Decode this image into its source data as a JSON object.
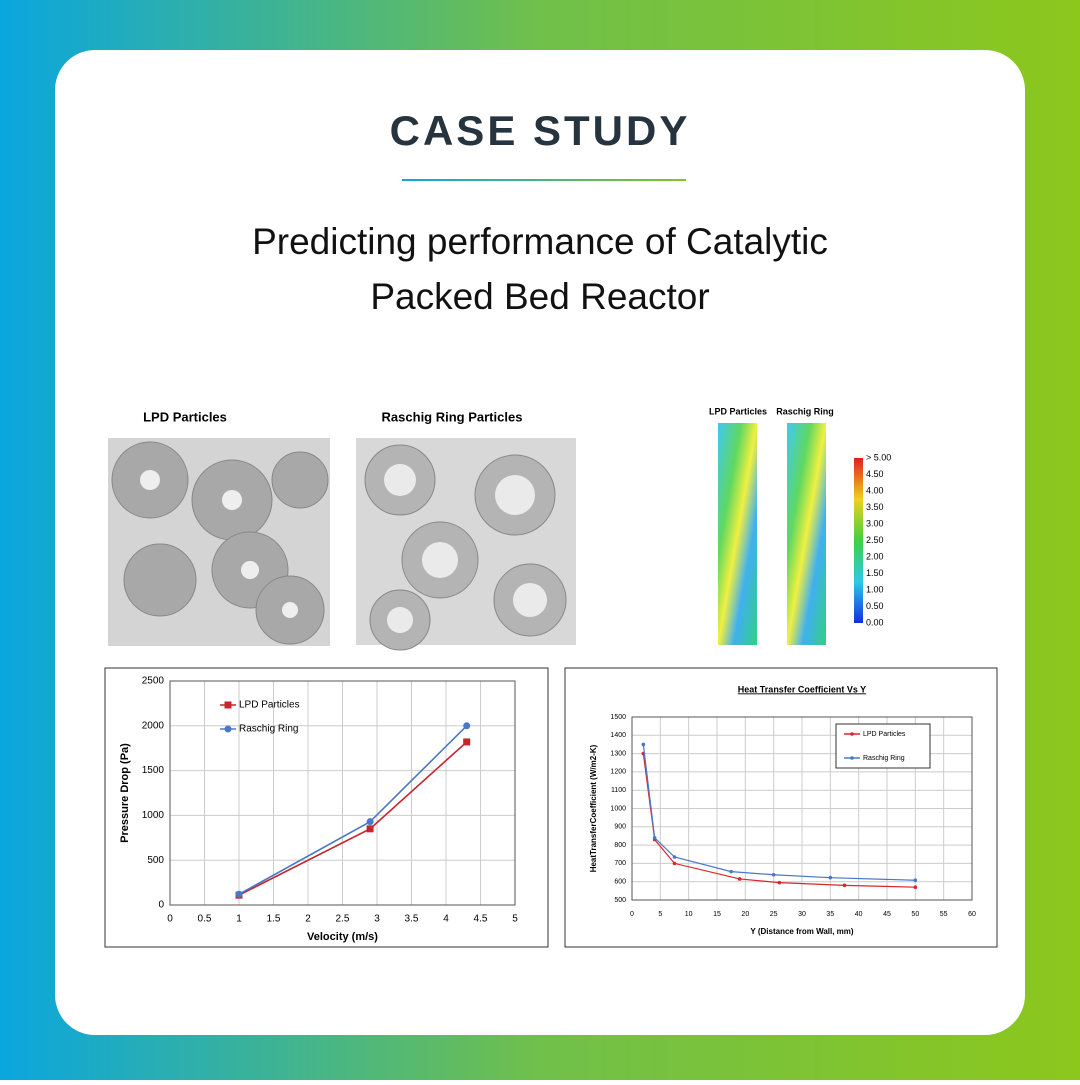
{
  "header": {
    "title": "CASE STUDY",
    "subtitle_lines": [
      "Predicting performance of Catalytic",
      "Packed Bed Reactor"
    ]
  },
  "renderings": {
    "labels": [
      "LPD Particles",
      "Raschig Ring Particles"
    ]
  },
  "contour": {
    "labels": [
      "LPD Particles",
      "Raschig Ring"
    ],
    "colorbar_labels": [
      "> 5.00",
      "4.50",
      "4.00",
      "3.50",
      "3.00",
      "2.50",
      "2.00",
      "1.50",
      "1.00",
      "0.50",
      "0.00"
    ]
  },
  "chart_data": [
    {
      "type": "line",
      "xlabel": "Velocity (m/s)",
      "ylabel": "Pressure Drop (Pa)",
      "xlim": [
        0,
        5
      ],
      "xticks": [
        0,
        0.5,
        1,
        1.5,
        2,
        2.5,
        3,
        3.5,
        4,
        4.5,
        5
      ],
      "ylim": [
        0,
        2500
      ],
      "yticks": [
        0,
        500,
        1000,
        1500,
        2000,
        2500
      ],
      "grid": true,
      "legend": "upper left",
      "legend_frame": false,
      "series": [
        {
          "name": "LPD Particles",
          "color": "#c8242c",
          "marker": "square",
          "x": [
            1,
            2.9,
            4.3
          ],
          "values": [
            110,
            850,
            1820
          ]
        },
        {
          "name": "Raschig Ring",
          "color": "#4a78c8",
          "marker": "circle",
          "x": [
            1,
            2.9,
            4.3
          ],
          "values": [
            120,
            930,
            2000
          ]
        }
      ]
    },
    {
      "type": "line",
      "title": "Heat Transfer Coefficient Vs Y",
      "xlabel": "Y (Distance from Wall, mm)",
      "ylabel": "HeatTransferCoefficient (W/m2-K)",
      "xlim": [
        0,
        60
      ],
      "xticks": [
        0,
        5,
        10,
        15,
        20,
        25,
        30,
        35,
        40,
        45,
        50,
        55,
        60
      ],
      "ylim": [
        500,
        1500
      ],
      "yticks": [
        500,
        600,
        700,
        800,
        900,
        1000,
        1100,
        1200,
        1300,
        1400,
        1500
      ],
      "grid": true,
      "legend": "upper right",
      "legend_frame": true,
      "series": [
        {
          "name": "LPD Particles",
          "color": "#d8262e",
          "marker": "dot",
          "x": [
            2,
            4,
            7.5,
            19,
            26,
            37.5,
            50
          ],
          "values": [
            1300,
            830,
            700,
            615,
            595,
            580,
            570
          ]
        },
        {
          "name": "Raschig Ring",
          "color": "#4a78c8",
          "marker": "dot",
          "x": [
            2,
            4,
            7.5,
            17.5,
            25,
            35,
            50
          ],
          "values": [
            1350,
            840,
            735,
            655,
            638,
            622,
            608
          ]
        }
      ]
    }
  ]
}
